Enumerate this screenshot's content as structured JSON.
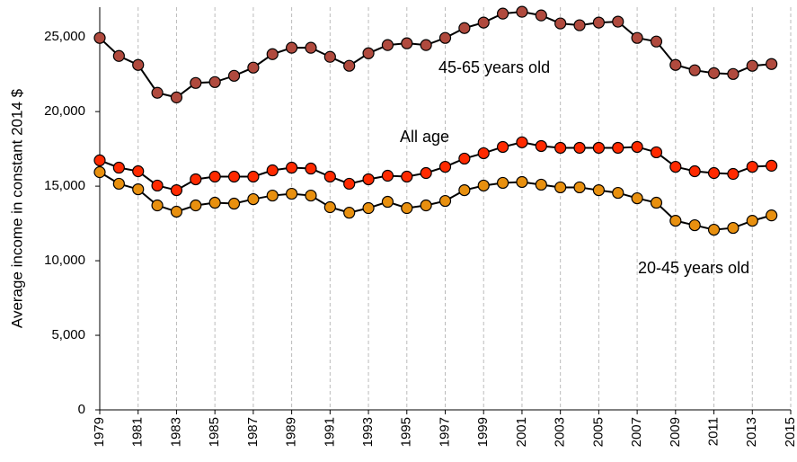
{
  "chart_data": {
    "type": "line",
    "y_label": "Average income in constant 2014 $",
    "x": [
      1979,
      1980,
      1981,
      1982,
      1983,
      1984,
      1985,
      1986,
      1987,
      1988,
      1989,
      1990,
      1991,
      1992,
      1993,
      1994,
      1995,
      1996,
      1997,
      1998,
      1999,
      2000,
      2001,
      2002,
      2003,
      2004,
      2005,
      2006,
      2007,
      2008,
      2009,
      2010,
      2011,
      2012,
      2013,
      2014
    ],
    "xlim": [
      1979,
      2015
    ],
    "xticks": [
      1979,
      1981,
      1983,
      1985,
      1987,
      1989,
      1991,
      1993,
      1995,
      1997,
      1999,
      2001,
      2003,
      2005,
      2007,
      2009,
      2011,
      2013,
      2015
    ],
    "ylim": [
      0,
      27000
    ],
    "yticks": [
      0,
      {
        "value": 5000,
        "label": "5,000"
      },
      {
        "value": 10000,
        "label": "10,000"
      },
      {
        "value": 15000,
        "label": "15,000"
      },
      {
        "value": 20000,
        "label": "20,000"
      },
      {
        "value": 25000,
        "label": "25,000"
      }
    ],
    "grid": "x",
    "series": [
      {
        "name": "45-65 years old",
        "color": "#b04a3e",
        "values": [
          24940,
          23730,
          23130,
          21260,
          20950,
          21920,
          21980,
          22400,
          22950,
          23850,
          24280,
          24280,
          23670,
          23070,
          23910,
          24460,
          24580,
          24460,
          24940,
          25600,
          25970,
          26570,
          26690,
          26450,
          25910,
          25790,
          25970,
          26030,
          24940,
          24700,
          23130,
          22770,
          22580,
          22520,
          23070,
          23190
        ]
      },
      {
        "name": "All age",
        "color": "#ff2a00",
        "values": [
          16730,
          16240,
          16000,
          15040,
          14730,
          15460,
          15640,
          15640,
          15640,
          16060,
          16240,
          16180,
          15640,
          15160,
          15460,
          15700,
          15640,
          15880,
          16300,
          16850,
          17210,
          17630,
          17940,
          17690,
          17570,
          17570,
          17570,
          17570,
          17630,
          17270,
          16300,
          16000,
          15880,
          15820,
          16300,
          16370
        ]
      },
      {
        "name": "20-45 years old",
        "color": "#e8900f",
        "values": [
          15940,
          15160,
          14790,
          13710,
          13290,
          13710,
          13890,
          13830,
          14130,
          14370,
          14490,
          14370,
          13590,
          13220,
          13530,
          13950,
          13530,
          13710,
          14010,
          14730,
          15040,
          15220,
          15280,
          15100,
          14920,
          14920,
          14730,
          14550,
          14190,
          13890,
          12680,
          12380,
          12080,
          12200,
          12680,
          13040
        ]
      }
    ]
  }
}
